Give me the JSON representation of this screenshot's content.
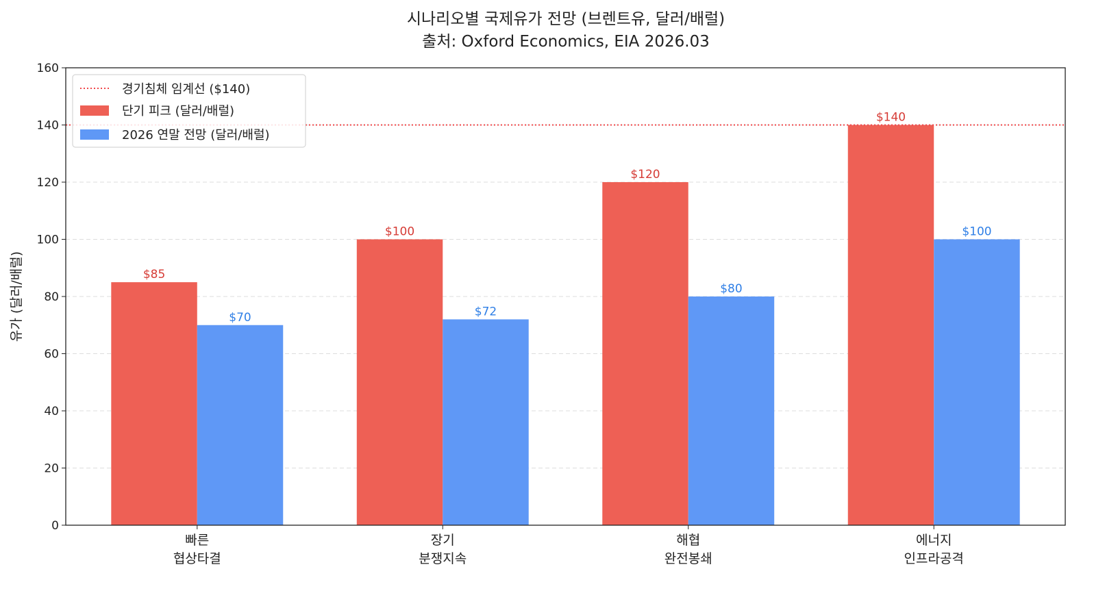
{
  "chart_data": {
    "type": "bar",
    "title": "시나리오별 국제유가 전망 (브렌트유, 달러/배럴)",
    "subtitle": "출처: Oxford Economics, EIA 2026.03",
    "xlabel": "",
    "ylabel": "유가 (달러/배럴)",
    "ylim": [
      0,
      160
    ],
    "yticks": [
      0,
      20,
      40,
      60,
      80,
      100,
      120,
      140,
      160
    ],
    "grid": "y-dashed",
    "legend_placement": "top-left",
    "categories": [
      [
        "빠른",
        "협상타결"
      ],
      [
        "장기",
        "분쟁지속"
      ],
      [
        "해협",
        "완전봉쇄"
      ],
      [
        "에너지",
        "인프라공격"
      ]
    ],
    "series": [
      {
        "name": "단기 피크 (달러/배럴)",
        "values": [
          85,
          100,
          120,
          140
        ],
        "labels": [
          "$85",
          "$100",
          "$120",
          "$140"
        ],
        "color": "#EE6055",
        "label_color": "#D63C36"
      },
      {
        "name": "2026 연말 전망 (달러/배럴)",
        "values": [
          70,
          72,
          80,
          100
        ],
        "labels": [
          "$70",
          "$72",
          "$80",
          "$100"
        ],
        "color": "#5F98F6",
        "label_color": "#2F7FE6"
      }
    ],
    "reference_line": {
      "name": "경기침체 임계선 ($140)",
      "value": 140,
      "color": "#F0474A",
      "style": "dotted"
    }
  }
}
